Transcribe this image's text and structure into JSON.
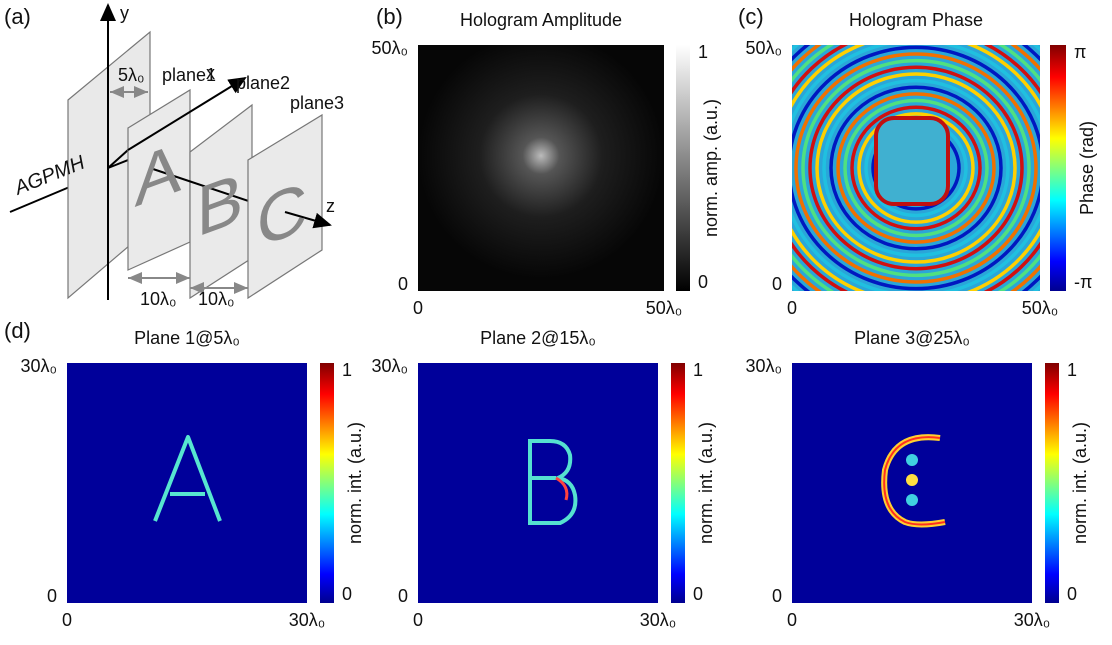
{
  "panel_a": {
    "label": "(a)",
    "y_axis": "y",
    "x_axis": "x",
    "z_axis": "z",
    "source": "AGPMH",
    "gap1": "5λ₀",
    "gap2": "10λ₀",
    "gap3": "10λ₀",
    "planes": [
      {
        "name": "plane1",
        "letter": "A"
      },
      {
        "name": "plane2",
        "letter": "B"
      },
      {
        "name": "plane3",
        "letter": "C"
      }
    ]
  },
  "panel_b": {
    "label": "(b)",
    "title": "Hologram Amplitude",
    "y_top": "50λ₀",
    "y_bottom": "0",
    "x_left": "0",
    "x_right": "50λ₀",
    "colorbar_label": "norm. amp. (a.u.)",
    "colorbar_top": "1",
    "colorbar_bottom": "0"
  },
  "panel_c": {
    "label": "(c)",
    "title": "Hologram Phase",
    "y_top": "50λ₀",
    "y_bottom": "0",
    "x_left": "0",
    "x_right": "50λ₀",
    "colorbar_label": "Phase (rad)",
    "colorbar_top": "π",
    "colorbar_bottom": "-π"
  },
  "panel_d": {
    "label": "(d)",
    "plots": [
      {
        "title": "Plane 1@5λ₀",
        "y_top": "30λ₀",
        "y_bottom": "0",
        "x_left": "0",
        "x_right": "30λ₀",
        "colorbar_label": "norm. int. (a.u.)",
        "colorbar_top": "1",
        "colorbar_bottom": "0"
      },
      {
        "title": "Plane 2@15λ₀",
        "y_top": "30λ₀",
        "y_bottom": "0",
        "x_left": "0",
        "x_right": "30λ₀",
        "colorbar_label": "norm. int. (a.u.)",
        "colorbar_top": "1",
        "colorbar_bottom": "0"
      },
      {
        "title": "Plane 3@25λ₀",
        "y_top": "30λ₀",
        "y_bottom": "0",
        "x_left": "0",
        "x_right": "30λ₀",
        "colorbar_label": "norm. int. (a.u.)",
        "colorbar_top": "1",
        "colorbar_bottom": "0"
      }
    ]
  }
}
